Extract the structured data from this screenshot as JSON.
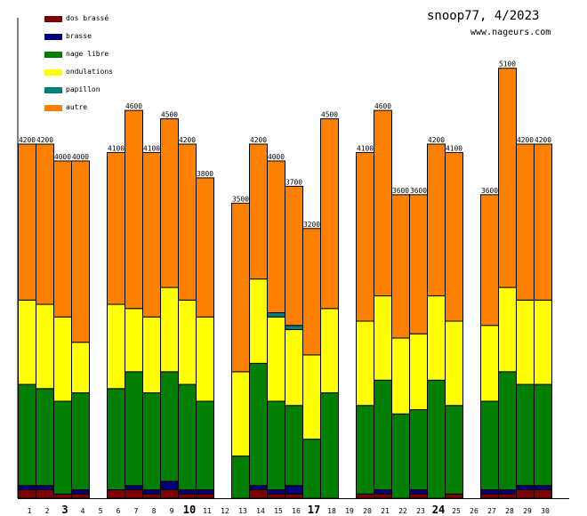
{
  "header": {
    "title": "snoop77, 4/2023",
    "site": "www.nageurs.com"
  },
  "colors": {
    "dos_brasse": "#7f0000",
    "brasse": "#00007f",
    "nage_libre": "#007f00",
    "ondulations": "#ffff00",
    "papillon": "#007f7f",
    "autre": "#ff7f00"
  },
  "chart_data": {
    "type": "bar",
    "stacked": true,
    "title": "snoop77, 4/2023",
    "subtitle": "www.nageurs.com",
    "xlabel": "",
    "ylabel": "",
    "ylim": [
      0,
      5600
    ],
    "legend_position": "top-left",
    "categories": [
      "1",
      "2",
      "3",
      "4",
      "5",
      "6",
      "7",
      "8",
      "9",
      "10",
      "11",
      "12",
      "13",
      "14",
      "15",
      "16",
      "17",
      "18",
      "19",
      "20",
      "21",
      "22",
      "23",
      "24",
      "25",
      "26",
      "27",
      "28",
      "29",
      "30"
    ],
    "bold_categories": [
      "3",
      "10",
      "17",
      "24"
    ],
    "totals": [
      4200,
      4200,
      4000,
      4000,
      null,
      4100,
      4600,
      4100,
      4500,
      4200,
      3800,
      null,
      3500,
      4200,
      4000,
      3700,
      3200,
      4500,
      null,
      4100,
      4600,
      3600,
      3600,
      4200,
      4100,
      null,
      3600,
      5100,
      4200,
      4200
    ],
    "total_labels": [
      "4200",
      "4200",
      "4000",
      "4000",
      "",
      "4100",
      "4600",
      "4100",
      "4500",
      "4200",
      "3800",
      "",
      "3500",
      "4200",
      "4000",
      "3700",
      "3200",
      "4500",
      "",
      "4100",
      "4600",
      "3600",
      "3600",
      "4200",
      "4100",
      "",
      "3600",
      "5100",
      "4200",
      "4200"
    ],
    "series": [
      {
        "name": "dos brassé",
        "key": "dos_brasse",
        "values": [
          100,
          100,
          50,
          50,
          0,
          100,
          100,
          50,
          100,
          50,
          50,
          0,
          0,
          100,
          50,
          50,
          0,
          0,
          0,
          50,
          50,
          0,
          50,
          0,
          50,
          0,
          50,
          50,
          100,
          100
        ]
      },
      {
        "name": "brasse",
        "key": "brasse",
        "values": [
          50,
          50,
          0,
          50,
          0,
          0,
          50,
          50,
          100,
          50,
          50,
          0,
          0,
          50,
          50,
          100,
          0,
          0,
          0,
          0,
          50,
          0,
          50,
          0,
          0,
          0,
          50,
          50,
          50,
          50
        ]
      },
      {
        "name": "nage libre",
        "key": "nage_libre",
        "values": [
          1200,
          1150,
          1100,
          1150,
          0,
          1200,
          1350,
          1150,
          1300,
          1250,
          1050,
          0,
          500,
          1450,
          1050,
          950,
          700,
          1250,
          0,
          1050,
          1300,
          1000,
          950,
          1400,
          1050,
          0,
          1050,
          1400,
          1200,
          1200
        ]
      },
      {
        "name": "ondulations",
        "key": "ondulations",
        "values": [
          1000,
          1000,
          1000,
          600,
          0,
          1000,
          750,
          900,
          1000,
          1000,
          1000,
          0,
          1000,
          1000,
          1000,
          900,
          1000,
          1000,
          0,
          1000,
          1000,
          900,
          900,
          1000,
          1000,
          0,
          900,
          1000,
          1000,
          1000
        ]
      },
      {
        "name": "papillon",
        "key": "papillon",
        "values": [
          0,
          0,
          0,
          0,
          0,
          0,
          0,
          0,
          0,
          0,
          0,
          0,
          0,
          0,
          50,
          50,
          0,
          0,
          0,
          0,
          0,
          0,
          0,
          0,
          0,
          0,
          0,
          0,
          0,
          0
        ]
      },
      {
        "name": "autre",
        "key": "autre",
        "values": [
          1850,
          1900,
          1850,
          2150,
          0,
          1800,
          2350,
          1950,
          2000,
          1850,
          1650,
          0,
          2000,
          1600,
          1800,
          1650,
          1500,
          2250,
          0,
          2000,
          2200,
          1700,
          1650,
          1800,
          2000,
          0,
          1550,
          2600,
          1850,
          1850
        ]
      }
    ]
  }
}
